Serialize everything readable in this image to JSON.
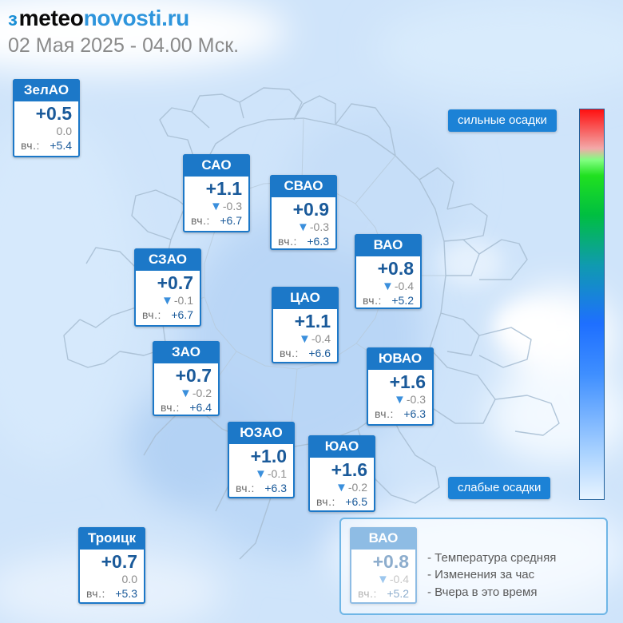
{
  "site": {
    "logo_mark": "ɜ",
    "logo_part1": "meteo",
    "logo_part2": "novosti.ru"
  },
  "datetime": "02 Мая 2025 - 04.00 Мск.",
  "yest_label": "вч.:",
  "districts": [
    {
      "id": "zelao",
      "name": "ЗелАО",
      "temp": "+0.5",
      "change": "0.0",
      "trend": "none",
      "yesterday": "+5.4"
    },
    {
      "id": "sao",
      "name": "САО",
      "temp": "+1.1",
      "change": "-0.3",
      "trend": "down",
      "yesterday": "+6.7"
    },
    {
      "id": "svao",
      "name": "СВАО",
      "temp": "+0.9",
      "change": "-0.3",
      "trend": "down",
      "yesterday": "+6.3"
    },
    {
      "id": "vao",
      "name": "ВАО",
      "temp": "+0.8",
      "change": "-0.4",
      "trend": "down",
      "yesterday": "+5.2"
    },
    {
      "id": "szao",
      "name": "СЗАО",
      "temp": "+0.7",
      "change": "-0.1",
      "trend": "down",
      "yesterday": "+6.7"
    },
    {
      "id": "cao",
      "name": "ЦАО",
      "temp": "+1.1",
      "change": "-0.4",
      "trend": "down",
      "yesterday": "+6.6"
    },
    {
      "id": "zao",
      "name": "ЗАО",
      "temp": "+0.7",
      "change": "-0.2",
      "trend": "down",
      "yesterday": "+6.4"
    },
    {
      "id": "yuvao",
      "name": "ЮВАО",
      "temp": "+1.6",
      "change": "-0.3",
      "trend": "down",
      "yesterday": "+6.3"
    },
    {
      "id": "yuzao",
      "name": "ЮЗАО",
      "temp": "+1.0",
      "change": "-0.1",
      "trend": "down",
      "yesterday": "+6.3"
    },
    {
      "id": "yuao",
      "name": "ЮАО",
      "temp": "+1.6",
      "change": "-0.2",
      "trend": "down",
      "yesterday": "+6.5"
    },
    {
      "id": "troitsk",
      "name": "Троицк",
      "temp": "+0.7",
      "change": "0.0",
      "trend": "none",
      "yesterday": "+5.3"
    }
  ],
  "scale": {
    "top_label": "сильные осадки",
    "bottom_label": "слабые осадки"
  },
  "legend": {
    "card": {
      "name": "ВАО",
      "temp": "+0.8",
      "change": "-0.4",
      "trend": "down",
      "yesterday": "+5.2"
    },
    "items": [
      "- Температура средняя",
      "- Изменения за час",
      "- Вчера в это время"
    ]
  },
  "colors": {
    "card_header": "#1c78c8",
    "value_text": "#1a5a9a",
    "trend_down": "#3a8fdc"
  }
}
